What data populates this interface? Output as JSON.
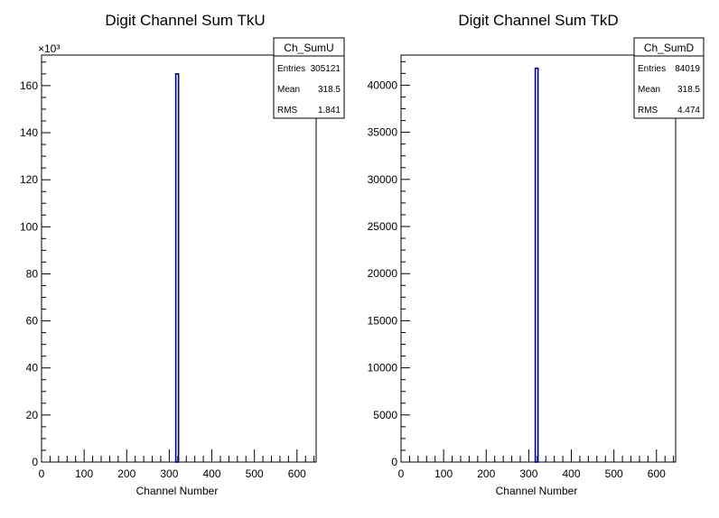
{
  "chart_data": [
    {
      "type": "histogram",
      "title": "Digit Channel Sum TkU",
      "xlabel": "Channel Number",
      "ylabel": "",
      "xlim": [
        0,
        645
      ],
      "ylim": [
        0,
        173
      ],
      "y_exponent_label": "×10³",
      "x_ticks": [
        "0",
        "100",
        "200",
        "300",
        "400",
        "500",
        "600"
      ],
      "y_ticks": [
        "0",
        "20",
        "40",
        "60",
        "80",
        "100",
        "120",
        "140",
        "160"
      ],
      "bins": [
        {
          "x": 318.5,
          "value": 165
        }
      ],
      "line_color": "#000080",
      "stats": {
        "name": "Ch_SumU",
        "rows": [
          {
            "label": "Entries",
            "value": "305121"
          },
          {
            "label": "Mean",
            "value": "318.5"
          },
          {
            "label": "RMS",
            "value": "1.841"
          }
        ]
      }
    },
    {
      "type": "histogram",
      "title": "Digit Channel Sum TkD",
      "xlabel": "Channel Number",
      "ylabel": "",
      "xlim": [
        0,
        645
      ],
      "ylim": [
        0,
        43200
      ],
      "y_exponent_label": "",
      "x_ticks": [
        "0",
        "100",
        "200",
        "300",
        "400",
        "500",
        "600"
      ],
      "y_ticks": [
        "0",
        "5000",
        "10000",
        "15000",
        "20000",
        "25000",
        "30000",
        "35000",
        "40000"
      ],
      "bins": [
        {
          "x": 318.5,
          "value": 41800
        }
      ],
      "line_color": "#000080",
      "stats": {
        "name": "Ch_SumD",
        "rows": [
          {
            "label": "Entries",
            "value": "84019"
          },
          {
            "label": "Mean",
            "value": "318.5"
          },
          {
            "label": "RMS",
            "value": "4.474"
          }
        ]
      }
    }
  ]
}
